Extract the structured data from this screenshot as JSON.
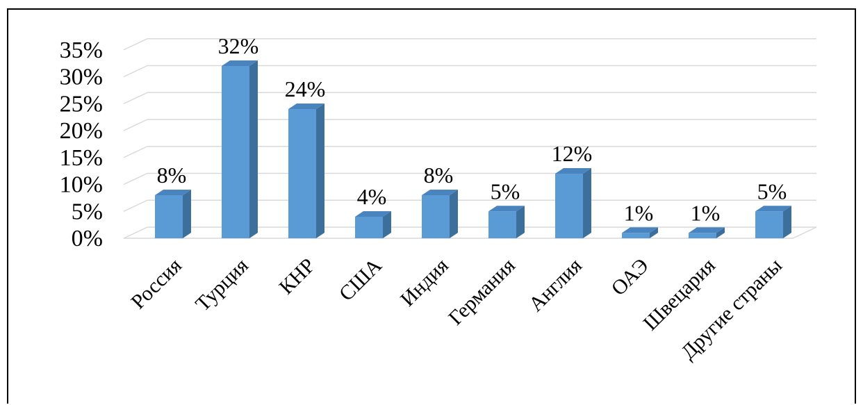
{
  "chart_data": {
    "type": "bar",
    "title": "",
    "xlabel": "",
    "ylabel": "",
    "categories": [
      "Россия",
      "Турция",
      "КНР",
      "США",
      "Индия",
      "Германия",
      "Англия",
      "ОАЭ",
      "Швецария",
      "Другие страны"
    ],
    "values": [
      8,
      32,
      24,
      4,
      8,
      5,
      12,
      1,
      1,
      5
    ],
    "data_labels": [
      "8%",
      "32%",
      "24%",
      "4%",
      "8%",
      "5%",
      "12%",
      "1%",
      "1%",
      "5%"
    ],
    "value_unit": "%",
    "ylim": [
      0,
      35
    ],
    "yticks": [
      0,
      5,
      10,
      15,
      20,
      25,
      30,
      35
    ],
    "ytick_labels": [
      "0%",
      "5%",
      "10%",
      "15%",
      "20%",
      "25%",
      "30%",
      "35%"
    ],
    "grid": true,
    "legend": false,
    "style": "3d-column",
    "colors": {
      "bar_front": "#5b9bd5",
      "bar_side": "#3d6f9c",
      "bar_top": "#4a84bf",
      "grid": "#d9d9d9"
    }
  }
}
